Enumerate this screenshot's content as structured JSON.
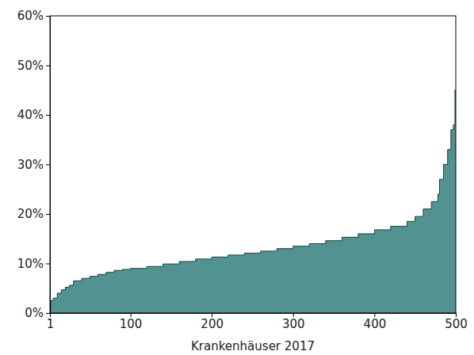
{
  "chart_data": {
    "type": "area",
    "x_label": "Krankenhäuser 2017",
    "color": "#529290",
    "x": [
      1,
      2,
      5,
      10,
      15,
      20,
      25,
      30,
      40,
      50,
      60,
      70,
      80,
      90,
      100,
      120,
      140,
      160,
      180,
      200,
      220,
      240,
      260,
      280,
      300,
      320,
      340,
      360,
      380,
      400,
      420,
      440,
      450,
      460,
      470,
      478,
      480,
      485,
      490,
      494,
      497,
      499,
      500
    ],
    "values": [
      0.5,
      2.5,
      3,
      4,
      4.7,
      5.2,
      5.6,
      6.5,
      7,
      7.4,
      7.8,
      8.2,
      8.6,
      8.8,
      9,
      9.4,
      9.9,
      10.4,
      10.9,
      11.3,
      11.7,
      12.1,
      12.5,
      13,
      13.5,
      14,
      14.6,
      15.3,
      16,
      16.8,
      17.5,
      18.5,
      19.5,
      21,
      22.5,
      24,
      27,
      30,
      33,
      37,
      38,
      45,
      45
    ],
    "xlim": [
      1,
      500
    ],
    "xticks": [
      1,
      100,
      200,
      300,
      400,
      500
    ],
    "ylim": [
      0,
      60
    ],
    "yticks": [
      {
        "value": 0,
        "label": "0%"
      },
      {
        "value": 10,
        "label": "10%"
      },
      {
        "value": 20,
        "label": "20%"
      },
      {
        "value": 30,
        "label": "30%"
      },
      {
        "value": 40,
        "label": "40%"
      },
      {
        "value": 50,
        "label": "50%"
      },
      {
        "value": 60,
        "label": "60%"
      }
    ],
    "grid": false
  }
}
